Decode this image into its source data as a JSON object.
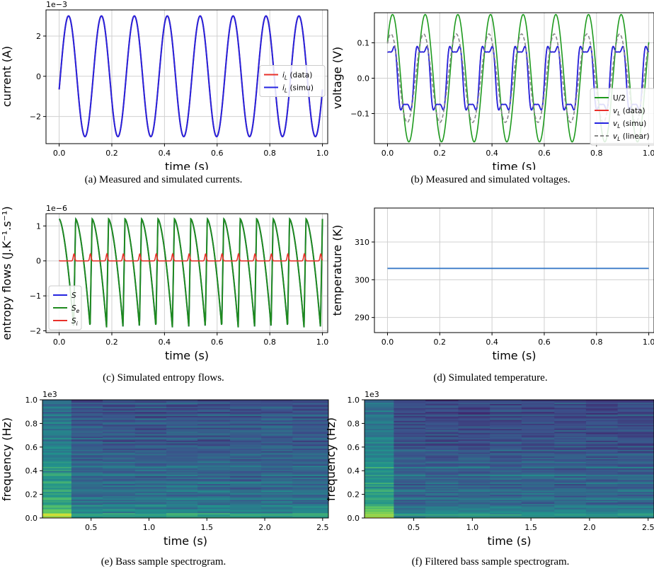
{
  "captions": {
    "a": "(a) Measured and simulated currents.",
    "b": "(b) Measured and simulated voltages.",
    "c": "(c) Simulated entropy flows.",
    "d": "(d) Simulated temperature.",
    "e": "(e) Bass sample spectrogram.",
    "f": "(f) Filtered bass sample spectrogram."
  },
  "chart_data": [
    {
      "id": "a",
      "type": "line",
      "xlabel": "time (s)",
      "ylabel": "current (A)",
      "offset": "1e−3",
      "xlim": [
        -0.05,
        1.02
      ],
      "ylim": [
        -3.35,
        3.3
      ],
      "xticks": [
        0.0,
        0.2,
        0.4,
        0.6,
        0.8,
        1.0
      ],
      "xtick_labels": [
        "0.0",
        "0.2",
        "0.4",
        "0.6",
        "0.8",
        "1.0"
      ],
      "yticks": [
        -2,
        0,
        2
      ],
      "ytick_labels": [
        "−2",
        "0",
        "2"
      ],
      "grid": true,
      "legend_position": "right",
      "series": [
        {
          "name": "i_L (data)",
          "color": "#e8302a",
          "width": 2.0,
          "dash": "",
          "kind": "sine",
          "amp": 3.0,
          "freq": 8.0,
          "phase": -0.22,
          "x0": 0.0,
          "x1": 1.0
        },
        {
          "name": "i_L (simu)",
          "color": "#2424e0",
          "width": 2.0,
          "dash": "",
          "kind": "sine",
          "amp": 3.0,
          "freq": 8.0,
          "phase": -0.22,
          "x0": 0.0,
          "x1": 1.0
        }
      ],
      "legend": [
        {
          "label": "i",
          "sub": "L",
          "suffix": " (data)",
          "color": "#e8302a",
          "dash": ""
        },
        {
          "label": "i",
          "sub": "L",
          "suffix": " (simu)",
          "color": "#2424e0",
          "dash": ""
        }
      ]
    },
    {
      "id": "b",
      "type": "line",
      "xlabel": "time (s)",
      "ylabel": "voltage (V)",
      "xlim": [
        -0.05,
        1.02
      ],
      "ylim": [
        -0.185,
        0.185
      ],
      "xticks": [
        0.0,
        0.2,
        0.4,
        0.6,
        0.8,
        1.0
      ],
      "xtick_labels": [
        "0.0",
        "0.2",
        "0.4",
        "0.6",
        "0.8",
        "1.0"
      ],
      "yticks": [
        -0.1,
        0.0,
        0.1
      ],
      "ytick_labels": [
        "−0.1",
        "0.0",
        "0.1"
      ],
      "grid": true,
      "legend_position": "right",
      "series": [
        {
          "name": "U/2",
          "color": "#1e9a1e",
          "width": 1.6,
          "dash": "",
          "kind": "sine",
          "amp": 0.18,
          "freq": 8.0,
          "phase": 0.6,
          "x0": 0.0,
          "x1": 1.0
        },
        {
          "name": "v_L (data)",
          "color": "#e8302a",
          "width": 1.6,
          "dash": "",
          "kind": "distorted",
          "amp": 0.12,
          "freq": 8.0,
          "phase": 1.2,
          "x0": 0.0,
          "x1": 1.0
        },
        {
          "name": "v_L (simu)",
          "color": "#2424e0",
          "width": 1.8,
          "dash": "",
          "kind": "distorted",
          "amp": 0.12,
          "freq": 8.0,
          "phase": 1.2,
          "x0": 0.0,
          "x1": 1.0
        },
        {
          "name": "v_L (linear)",
          "color": "#888888",
          "width": 1.6,
          "dash": "5,3",
          "kind": "sine",
          "amp": 0.125,
          "freq": 8.0,
          "phase": 0.9,
          "x0": 0.0,
          "x1": 1.0
        }
      ],
      "legend": [
        {
          "label": "U/2",
          "sub": "",
          "suffix": "",
          "color": "#1e9a1e",
          "dash": ""
        },
        {
          "label": "v",
          "sub": "L",
          "suffix": " (data)",
          "color": "#e8302a",
          "dash": ""
        },
        {
          "label": "v",
          "sub": "L",
          "suffix": " (simu)",
          "color": "#2424e0",
          "dash": ""
        },
        {
          "label": "v",
          "sub": "L",
          "suffix": " (linear)",
          "color": "#888888",
          "dash": "5,3"
        }
      ]
    },
    {
      "id": "c",
      "type": "line",
      "xlabel": "time (s)",
      "ylabel": "entropy flows (J.K⁻¹.s⁻¹)",
      "offset": "1e−6",
      "xlim": [
        -0.05,
        1.02
      ],
      "ylim": [
        -2.05,
        1.35
      ],
      "xticks": [
        0.0,
        0.2,
        0.4,
        0.6,
        0.8,
        1.0
      ],
      "xtick_labels": [
        "0.0",
        "0.2",
        "0.4",
        "0.6",
        "0.8",
        "1.0"
      ],
      "yticks": [
        -2,
        -1,
        0,
        1
      ],
      "ytick_labels": [
        "−2",
        "−1",
        "0",
        "1"
      ],
      "grid": true,
      "legend_position": "lower-left",
      "series": [
        {
          "name": "S",
          "color": "#2424e0",
          "width": 1.8,
          "dash": "",
          "kind": "sawtooth",
          "amp": 1.9,
          "top": 1.2,
          "freq": 16.0,
          "x0": 0.0,
          "x1": 1.0
        },
        {
          "name": "S_e",
          "color": "#1e8a1e",
          "width": 2.0,
          "dash": "",
          "kind": "sawtooth",
          "amp": 1.9,
          "top": 1.2,
          "freq": 16.0,
          "x0": 0.0,
          "x1": 1.0
        },
        {
          "name": "S_i",
          "color": "#e8302a",
          "width": 1.6,
          "dash": "",
          "kind": "pulses",
          "amp": 0.2,
          "freq": 16.0,
          "x0": 0.0,
          "x1": 1.0
        }
      ],
      "legend": [
        {
          "label": "S",
          "sub": "",
          "suffix": "",
          "color": "#2424e0",
          "dash": ""
        },
        {
          "label": "S",
          "sub": "e",
          "suffix": "",
          "color": "#1e8a1e",
          "dash": ""
        },
        {
          "label": "S",
          "sub": "i",
          "suffix": "",
          "color": "#e8302a",
          "dash": ""
        }
      ]
    },
    {
      "id": "d",
      "type": "line",
      "xlabel": "time (s)",
      "ylabel": "temperature (K)",
      "xlim": [
        -0.05,
        1.02
      ],
      "ylim": [
        286.0,
        319.0
      ],
      "xticks": [
        0.0,
        0.2,
        0.4,
        0.6,
        0.8,
        1.0
      ],
      "xtick_labels": [
        "0.0",
        "0.2",
        "0.4",
        "0.6",
        "0.8",
        "1.0"
      ],
      "yticks": [
        290,
        300,
        310
      ],
      "ytick_labels": [
        "290",
        "300",
        "310"
      ],
      "grid": true,
      "legend_position": "",
      "series": [
        {
          "name": "",
          "color": "#3a7ac8",
          "width": 1.8,
          "dash": "",
          "kind": "flat",
          "value": 303.0,
          "x0": 0.0,
          "x1": 1.0
        }
      ],
      "legend": []
    },
    {
      "id": "e",
      "type": "heatmap",
      "xlabel": "time (s)",
      "ylabel": "frequency (Hz)",
      "offset": "1e3",
      "xlim": [
        0.08,
        2.55
      ],
      "ylim": [
        0.0,
        1.0
      ],
      "xticks": [
        0.5,
        1.0,
        1.5,
        2.0,
        2.5
      ],
      "xtick_labels": [
        "0.5",
        "1.0",
        "1.5",
        "2.0",
        "2.5"
      ],
      "yticks": [
        0.0,
        0.2,
        0.4,
        0.6,
        0.8,
        1.0
      ],
      "ytick_labels": [
        "0.0",
        "0.2",
        "0.4",
        "0.6",
        "0.8",
        "1.0"
      ],
      "grid": false,
      "colormap": "viridis",
      "segment_boundaries": [
        0.08,
        0.33,
        0.6,
        0.88,
        1.15,
        1.42,
        1.7,
        1.97,
        2.24,
        2.55
      ],
      "rows": 90,
      "seed": 7,
      "filtered": false
    },
    {
      "id": "f",
      "type": "heatmap",
      "xlabel": "time (s)",
      "ylabel": "frequency (Hz)",
      "offset": "1e3",
      "xlim": [
        0.08,
        2.55
      ],
      "ylim": [
        0.0,
        1.0
      ],
      "xticks": [
        0.5,
        1.0,
        1.5,
        2.0,
        2.5
      ],
      "xtick_labels": [
        "0.5",
        "1.0",
        "1.5",
        "2.0",
        "2.5"
      ],
      "yticks": [
        0.0,
        0.2,
        0.4,
        0.6,
        0.8,
        1.0
      ],
      "ytick_labels": [
        "0.0",
        "0.2",
        "0.4",
        "0.6",
        "0.8",
        "1.0"
      ],
      "grid": false,
      "colormap": "viridis",
      "segment_boundaries": [
        0.08,
        0.33,
        0.6,
        0.88,
        1.15,
        1.42,
        1.7,
        1.97,
        2.24,
        2.55
      ],
      "rows": 90,
      "seed": 11,
      "filtered": true
    }
  ]
}
